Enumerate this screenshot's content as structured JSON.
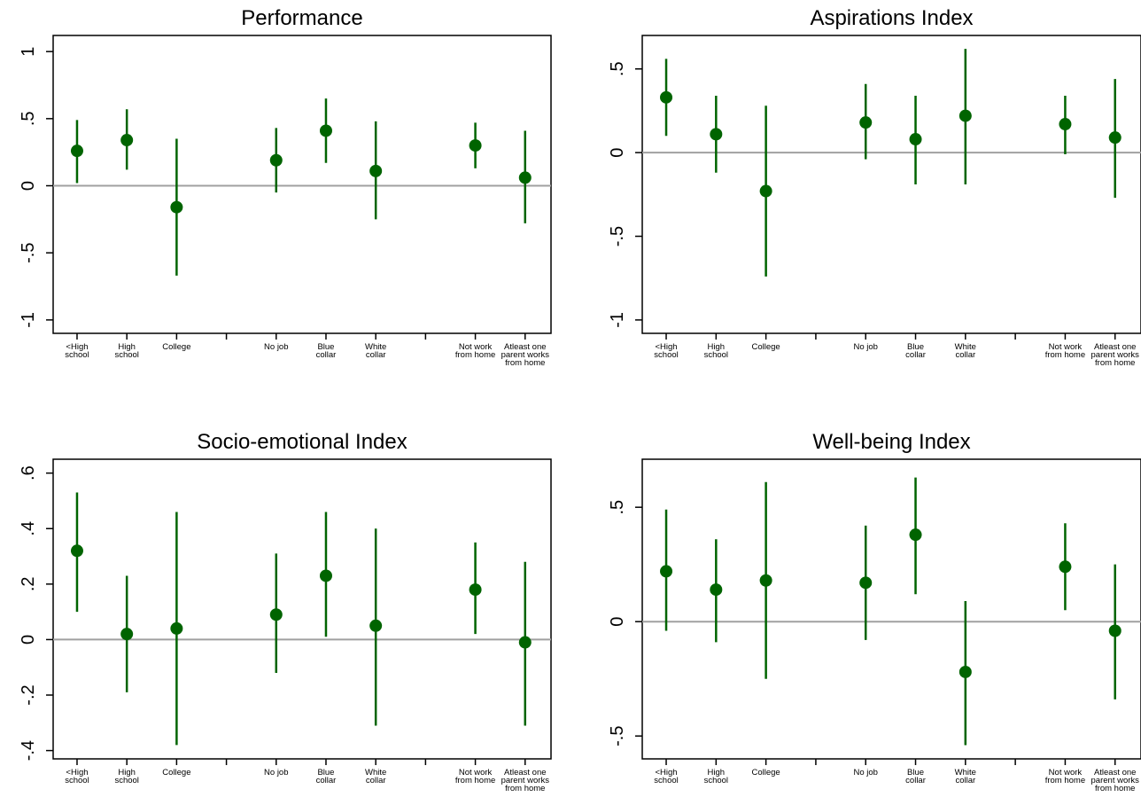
{
  "chart_data": [
    {
      "type": "scatter",
      "title": "Performance",
      "ylim": [
        -1.1,
        1.12
      ],
      "yticks": [
        -1,
        -0.5,
        0,
        0.5,
        1
      ],
      "ytick_labels": [
        "-1",
        "-.5",
        "0",
        ".5",
        "1"
      ],
      "categories": [
        [
          "<High",
          "school"
        ],
        [
          "High",
          "school"
        ],
        [
          "College"
        ],
        [
          "No job"
        ],
        [
          "Blue",
          "collar"
        ],
        [
          "White",
          "collar"
        ],
        [
          "Not work",
          "from home"
        ],
        [
          "Atleast one",
          "parent works",
          "from home"
        ]
      ],
      "estimates": [
        0.26,
        0.34,
        -0.16,
        0.19,
        0.41,
        0.11,
        0.3,
        0.06
      ],
      "ci_low": [
        0.02,
        0.12,
        -0.67,
        -0.05,
        0.17,
        -0.25,
        0.13,
        -0.28
      ],
      "ci_high": [
        0.49,
        0.57,
        0.35,
        0.43,
        0.65,
        0.48,
        0.47,
        0.41
      ],
      "reference_line": 0,
      "grid": false
    },
    {
      "type": "scatter",
      "title": "Aspirations Index",
      "ylim": [
        -1.08,
        0.7
      ],
      "yticks": [
        -1,
        -0.5,
        0,
        0.5
      ],
      "ytick_labels": [
        "-1",
        "-.5",
        "0",
        ".5"
      ],
      "categories": [
        [
          "<High",
          "school"
        ],
        [
          "High",
          "school"
        ],
        [
          "College"
        ],
        [
          "No job"
        ],
        [
          "Blue",
          "collar"
        ],
        [
          "White",
          "collar"
        ],
        [
          "Not work",
          "from home"
        ],
        [
          "Atleast one",
          "parent works",
          "from home"
        ]
      ],
      "estimates": [
        0.33,
        0.11,
        -0.23,
        0.18,
        0.08,
        0.22,
        0.17,
        0.09
      ],
      "ci_low": [
        0.1,
        -0.12,
        -0.74,
        -0.04,
        -0.19,
        -0.19,
        -0.01,
        -0.27
      ],
      "ci_high": [
        0.56,
        0.34,
        0.28,
        0.41,
        0.34,
        0.62,
        0.34,
        0.44
      ],
      "reference_line": 0,
      "grid": false
    },
    {
      "type": "scatter",
      "title": "Socio-emotional Index",
      "ylim": [
        -0.43,
        0.65
      ],
      "yticks": [
        -0.4,
        -0.2,
        0,
        0.2,
        0.4,
        0.6
      ],
      "ytick_labels": [
        "-.4",
        "-.2",
        "0",
        ".2",
        ".4",
        ".6"
      ],
      "categories": [
        [
          "<High",
          "school"
        ],
        [
          "High",
          "school"
        ],
        [
          "College"
        ],
        [
          "No job"
        ],
        [
          "Blue",
          "collar"
        ],
        [
          "White",
          "collar"
        ],
        [
          "Not work",
          "from home"
        ],
        [
          "Atleast one",
          "parent works",
          "from home"
        ]
      ],
      "estimates": [
        0.32,
        0.02,
        0.04,
        0.09,
        0.23,
        0.05,
        0.18,
        -0.01
      ],
      "ci_low": [
        0.1,
        -0.19,
        -0.38,
        -0.12,
        0.01,
        -0.31,
        0.02,
        -0.31
      ],
      "ci_high": [
        0.53,
        0.23,
        0.46,
        0.31,
        0.46,
        0.4,
        0.35,
        0.28
      ],
      "reference_line": 0,
      "grid": false
    },
    {
      "type": "scatter",
      "title": "Well-being Index",
      "ylim": [
        -0.6,
        0.71
      ],
      "yticks": [
        -0.5,
        0,
        0.5
      ],
      "ytick_labels": [
        "-.5",
        "0",
        ".5"
      ],
      "categories": [
        [
          "<High",
          "school"
        ],
        [
          "High",
          "school"
        ],
        [
          "College"
        ],
        [
          "No job"
        ],
        [
          "Blue",
          "collar"
        ],
        [
          "White",
          "collar"
        ],
        [
          "Not work",
          "from home"
        ],
        [
          "Atleast one",
          "parent works",
          "from home"
        ]
      ],
      "estimates": [
        0.22,
        0.14,
        0.18,
        0.17,
        0.38,
        -0.22,
        0.24,
        -0.04
      ],
      "ci_low": [
        -0.04,
        -0.09,
        -0.25,
        -0.08,
        0.12,
        -0.54,
        0.05,
        -0.34
      ],
      "ci_high": [
        0.49,
        0.36,
        0.61,
        0.42,
        0.63,
        0.09,
        0.43,
        0.25
      ],
      "reference_line": 0,
      "grid": false
    }
  ],
  "colors": {
    "marker": "#006400",
    "ci_line": "#006400",
    "reference_line": "#a0a0a0",
    "axis": "#000000"
  }
}
